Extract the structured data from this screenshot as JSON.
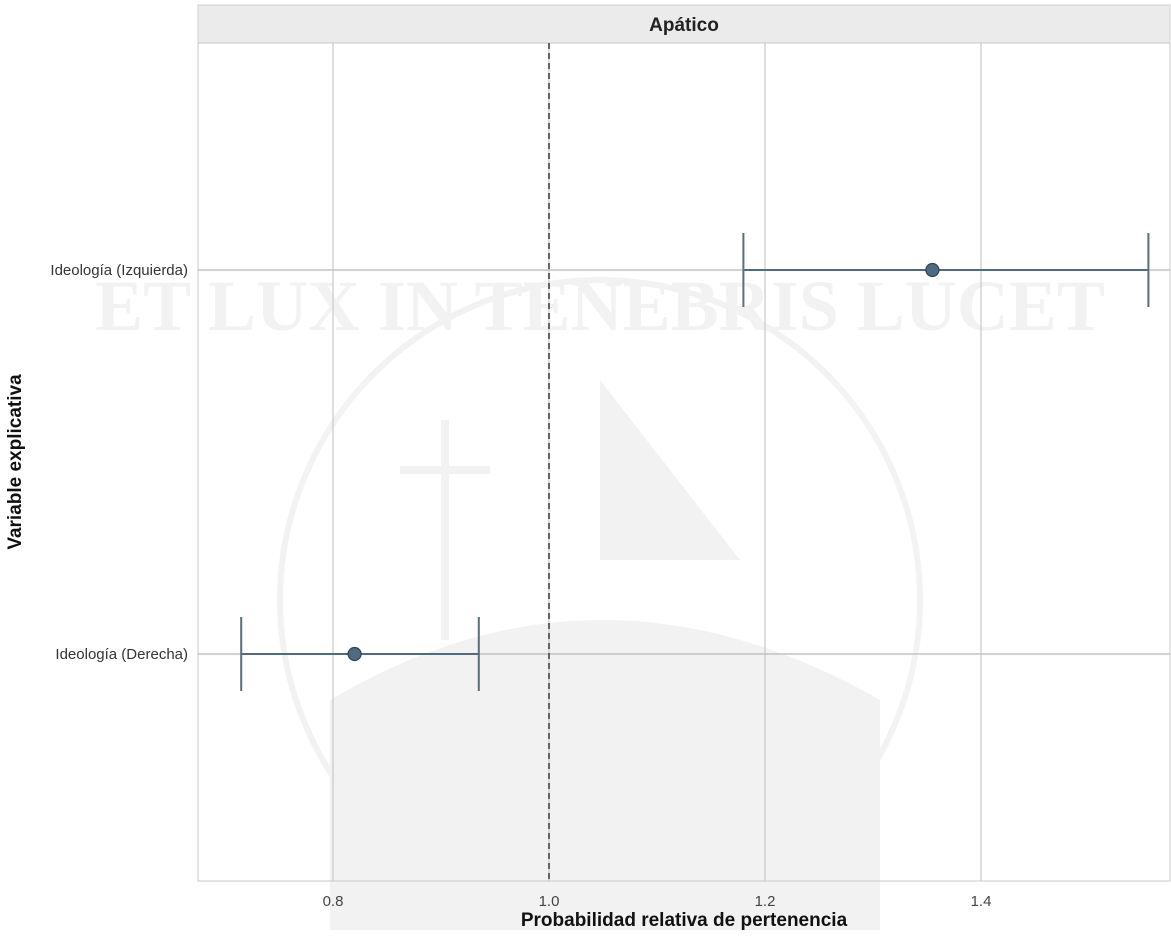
{
  "chart_data": {
    "type": "scatter",
    "subtype": "forest-plot",
    "panel_title": "Apático",
    "xlabel": "Probabilidad relativa de pertenencia",
    "ylabel": "Variable explicativa",
    "xlim": [
      0.675,
      1.575
    ],
    "x_ticks": [
      {
        "value": 0.8,
        "label": "0.8"
      },
      {
        "value": 1.0,
        "label": "1.0"
      },
      {
        "value": 1.2,
        "label": "1.2"
      },
      {
        "value": 1.4,
        "label": "1.4"
      }
    ],
    "reference_line": 1.0,
    "categories": [
      "Ideología (Izquierda)",
      "Ideología (Derecha)"
    ],
    "points": [
      {
        "label": "Ideología (Izquierda)",
        "estimate": 1.355,
        "lower": 1.18,
        "upper": 1.555
      },
      {
        "label": "Ideología (Derecha)",
        "estimate": 0.82,
        "lower": 0.715,
        "upper": 0.935
      }
    ],
    "grid": true,
    "legend": "none"
  },
  "watermark": "ET LUX IN TENEBRIS LUCET",
  "colors": {
    "point": "#4e6b84",
    "errorbar": "#5c6e78",
    "grid": "#c8c8c8",
    "reference": "#555555",
    "strip": "#ebebeb",
    "text": "#222222"
  }
}
